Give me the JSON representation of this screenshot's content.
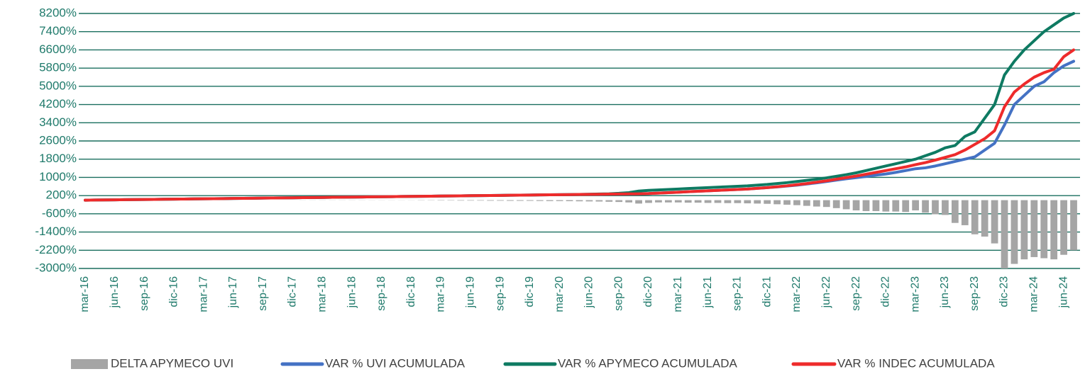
{
  "chart_data": {
    "type": "combo",
    "categories": [
      "mar-16",
      null,
      null,
      "jun-16",
      null,
      null,
      "sep-16",
      null,
      null,
      "dic-16",
      null,
      null,
      "mar-17",
      null,
      null,
      "jun-17",
      null,
      null,
      "sep-17",
      null,
      null,
      "dic-17",
      null,
      null,
      "mar-18",
      null,
      null,
      "jun-18",
      null,
      null,
      "sep-18",
      null,
      null,
      "dic-18",
      null,
      null,
      "mar-19",
      null,
      null,
      "jun-19",
      null,
      null,
      "sep-19",
      null,
      null,
      "dic-19",
      null,
      null,
      "mar-20",
      null,
      null,
      "jun-20",
      null,
      null,
      "sep-20",
      null,
      null,
      "dic-20",
      null,
      null,
      "mar-21",
      null,
      null,
      "jun-21",
      null,
      null,
      "sep-21",
      null,
      null,
      "dic-21",
      null,
      null,
      "mar-22",
      null,
      null,
      "jun-22",
      null,
      null,
      "sep-22",
      null,
      null,
      "dic-22",
      null,
      null,
      "mar-23",
      null,
      null,
      "jun-23",
      null,
      null,
      "sep-23",
      null,
      null,
      "dic-23",
      null,
      null,
      "mar-24",
      null,
      null,
      "jun-24",
      null
    ],
    "series": [
      {
        "name": "DELTA APYMECO UVI",
        "type": "bar",
        "color": "#a5a5a5",
        "values": [
          0,
          0,
          0,
          0,
          0,
          0,
          0,
          0,
          0,
          0,
          0,
          0,
          0,
          0,
          0,
          0,
          0,
          0,
          0,
          0,
          0,
          0,
          -5,
          -5,
          -5,
          -5,
          -5,
          -5,
          -5,
          -5,
          -5,
          -5,
          -5,
          -5,
          -10,
          -10,
          -15,
          -15,
          -20,
          -20,
          -20,
          -25,
          -25,
          -30,
          -30,
          -30,
          -35,
          -40,
          -40,
          -45,
          -50,
          -55,
          -60,
          -70,
          -80,
          -100,
          -150,
          -120,
          -100,
          -100,
          -100,
          -110,
          -110,
          -120,
          -120,
          -130,
          -130,
          -140,
          -150,
          -160,
          -180,
          -200,
          -220,
          -250,
          -280,
          -300,
          -350,
          -400,
          -450,
          -480,
          -480,
          -500,
          -500,
          -520,
          -450,
          -550,
          -620,
          -650,
          -1000,
          -1100,
          -1500,
          -1600,
          -1900,
          -3000,
          -2800,
          -2600,
          -2500,
          -2550,
          -2600,
          -2400,
          -2200
        ]
      },
      {
        "name": "VAR % UVI ACUMULADA",
        "type": "line",
        "color": "#4472c4",
        "values": [
          0,
          5,
          10,
          15,
          20,
          25,
          30,
          35,
          40,
          45,
          50,
          55,
          60,
          65,
          70,
          75,
          80,
          85,
          90,
          95,
          100,
          105,
          110,
          115,
          120,
          125,
          130,
          135,
          140,
          145,
          150,
          155,
          160,
          165,
          170,
          175,
          180,
          185,
          190,
          195,
          200,
          205,
          210,
          215,
          220,
          225,
          230,
          235,
          240,
          245,
          250,
          255,
          260,
          265,
          270,
          275,
          280,
          290,
          310,
          330,
          350,
          370,
          390,
          410,
          430,
          450,
          470,
          490,
          520,
          550,
          580,
          620,
          660,
          710,
          760,
          820,
          880,
          940,
          990,
          1040,
          1100,
          1150,
          1220,
          1300,
          1380,
          1420,
          1500,
          1600,
          1700,
          1800,
          1900,
          2200,
          2500,
          3300,
          4200,
          4600,
          5000,
          5200,
          5600,
          5900,
          6100
        ]
      },
      {
        "name": "VAR % APYMECO ACUMULADA",
        "type": "line",
        "color": "#0e7a62",
        "values": [
          0,
          5,
          10,
          15,
          20,
          25,
          30,
          35,
          40,
          45,
          50,
          55,
          60,
          65,
          70,
          75,
          80,
          85,
          90,
          95,
          100,
          105,
          110,
          115,
          120,
          125,
          130,
          135,
          140,
          145,
          150,
          155,
          160,
          165,
          170,
          175,
          180,
          185,
          190,
          195,
          200,
          205,
          210,
          215,
          220,
          225,
          230,
          235,
          240,
          245,
          250,
          260,
          270,
          280,
          300,
          330,
          400,
          430,
          450,
          470,
          490,
          510,
          530,
          550,
          570,
          590,
          610,
          630,
          660,
          690,
          730,
          770,
          820,
          870,
          920,
          980,
          1050,
          1120,
          1200,
          1300,
          1400,
          1500,
          1600,
          1700,
          1800,
          1950,
          2100,
          2300,
          2400,
          2800,
          3000,
          3600,
          4200,
          5500,
          6100,
          6600,
          7000,
          7400,
          7700,
          8000,
          8200
        ]
      },
      {
        "name": "VAR % INDEC ACUMULADA",
        "type": "line",
        "color": "#ee2b2b",
        "values": [
          0,
          5,
          10,
          15,
          20,
          25,
          30,
          35,
          40,
          45,
          50,
          55,
          60,
          65,
          70,
          75,
          80,
          85,
          90,
          95,
          100,
          105,
          110,
          115,
          120,
          125,
          130,
          135,
          140,
          145,
          150,
          155,
          160,
          165,
          170,
          175,
          180,
          185,
          190,
          195,
          200,
          205,
          210,
          215,
          220,
          225,
          230,
          235,
          240,
          245,
          250,
          255,
          260,
          265,
          270,
          275,
          280,
          290,
          310,
          330,
          350,
          370,
          390,
          410,
          430,
          450,
          470,
          490,
          520,
          550,
          590,
          630,
          680,
          730,
          790,
          850,
          920,
          990,
          1060,
          1140,
          1220,
          1300,
          1380,
          1460,
          1560,
          1650,
          1760,
          1880,
          2000,
          2200,
          2450,
          2700,
          3050,
          4100,
          4750,
          5100,
          5400,
          5600,
          5750,
          6300,
          6600
        ]
      }
    ],
    "ylim": [
      -3000,
      8200
    ],
    "yticks": [
      {
        "value": -3000,
        "label": "-3000%"
      },
      {
        "value": -2200,
        "label": "-2200%"
      },
      {
        "value": -1400,
        "label": "-1400%"
      },
      {
        "value": -600,
        "label": "-600%"
      },
      {
        "value": 200,
        "label": "200%"
      },
      {
        "value": 1000,
        "label": "1000%"
      },
      {
        "value": 1800,
        "label": "1800%"
      },
      {
        "value": 2600,
        "label": "2600%"
      },
      {
        "value": 3400,
        "label": "3400%"
      },
      {
        "value": 4200,
        "label": "4200%"
      },
      {
        "value": 5000,
        "label": "5000%"
      },
      {
        "value": 5800,
        "label": "5800%"
      },
      {
        "value": 6600,
        "label": "6600%"
      },
      {
        "value": 7400,
        "label": "7400%"
      },
      {
        "value": 8200,
        "label": "8200%"
      }
    ],
    "grid": true,
    "legend": "bottom"
  }
}
